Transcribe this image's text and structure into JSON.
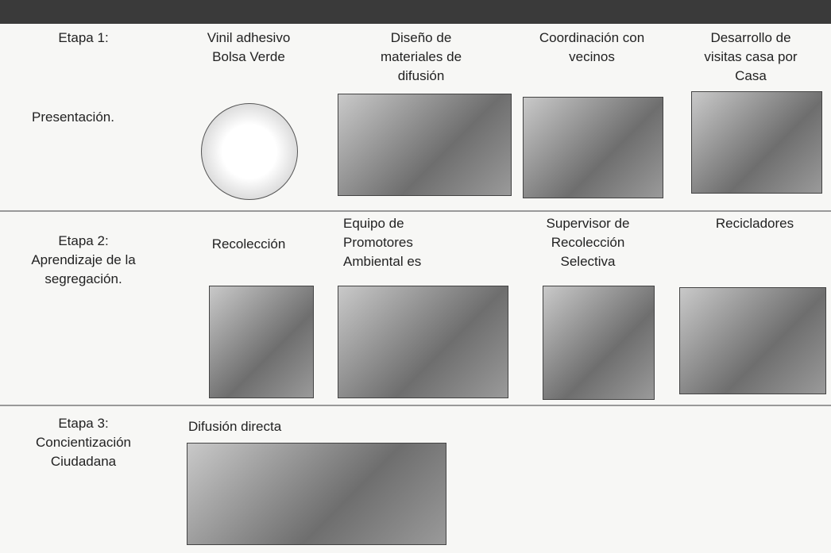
{
  "rows": [
    {
      "stage": [
        "Etapa 1:",
        "Presentación."
      ],
      "items": [
        {
          "label": [
            "Vinil adhesivo",
            "Bolsa Verde"
          ]
        },
        {
          "label": [
            "Diseño de",
            "materiales de",
            "difusión"
          ]
        },
        {
          "label": [
            "Coordinación con",
            "vecinos"
          ]
        },
        {
          "label": [
            "Desarrollo de",
            "visitas casa por",
            "Casa"
          ]
        }
      ]
    },
    {
      "stage": [
        "Etapa 2:",
        "Aprendizaje de la",
        "segregación."
      ],
      "items": [
        {
          "label": [
            "Recolección"
          ]
        },
        {
          "label": [
            "Equipo de",
            "Promotores",
            "Ambiental es"
          ]
        },
        {
          "label": [
            "Supervisor de",
            "Recolección",
            "Selectiva"
          ]
        },
        {
          "label": [
            "Recicladores"
          ]
        }
      ]
    },
    {
      "stage": [
        "Etapa 3:",
        "Concientización",
        "Ciudadana"
      ],
      "items": [
        {
          "label": [
            "Difusión directa"
          ]
        }
      ]
    }
  ]
}
